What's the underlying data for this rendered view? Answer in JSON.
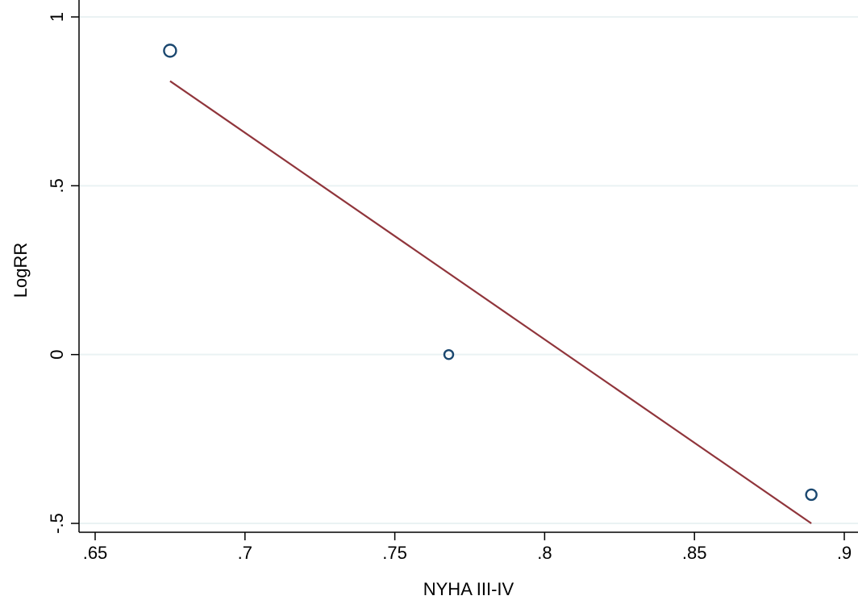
{
  "chart_data": {
    "type": "scatter",
    "title": "",
    "xlabel": "NYHA III-IV",
    "ylabel": "LogRR",
    "xlim": [
      0.65,
      0.9
    ],
    "ylim": [
      -0.5,
      1
    ],
    "x_ticks": [
      0.65,
      0.7,
      0.75,
      0.8,
      0.85,
      0.9
    ],
    "x_tick_labels": [
      ".65",
      ".7",
      ".75",
      ".8",
      ".85",
      ".9"
    ],
    "y_ticks": [
      -0.5,
      0,
      0.5,
      1
    ],
    "y_tick_labels": [
      "-.5",
      "0",
      ".5",
      "1"
    ],
    "grid": "horizontal",
    "series": [
      {
        "type": "scatter",
        "marker": "hollow-circle",
        "color": "#1a476f",
        "points": [
          {
            "x": 0.675,
            "y": 0.9,
            "weight": "large"
          },
          {
            "x": 0.768,
            "y": 0.0,
            "weight": "small"
          },
          {
            "x": 0.889,
            "y": -0.415,
            "weight": "medium"
          }
        ]
      },
      {
        "type": "line",
        "color": "#90353b",
        "points": [
          {
            "x": 0.675,
            "y": 0.81
          },
          {
            "x": 0.889,
            "y": -0.5
          }
        ]
      }
    ]
  }
}
